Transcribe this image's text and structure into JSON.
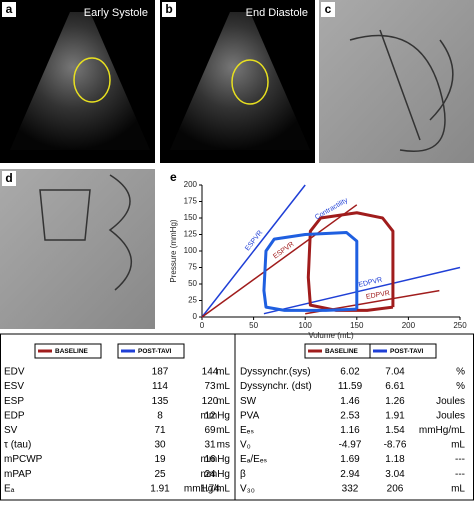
{
  "panels": [
    {
      "label": "a",
      "caption": "Early Systole"
    },
    {
      "label": "b",
      "caption": "End Diastole"
    },
    {
      "label": "c"
    },
    {
      "label": "d"
    }
  ],
  "chart_data": {
    "type": "line",
    "label": "e",
    "xlabel": "Volume (mL)",
    "ylabel": "Pressure (mmHg)",
    "xlim": [
      0,
      250
    ],
    "xticks": [
      0,
      50,
      100,
      150,
      200,
      250
    ],
    "ylim": [
      0,
      200
    ],
    "yticks": [
      0,
      25,
      50,
      75,
      100,
      125,
      150,
      175,
      200
    ],
    "series": [
      {
        "name": "ESPVR",
        "color": "#1f3fd6",
        "x": [
          0,
          100
        ],
        "values": [
          0,
          200
        ]
      },
      {
        "name": "ESPVR",
        "color": "#a01c1c",
        "x": [
          0,
          150
        ],
        "values": [
          0,
          170
        ]
      },
      {
        "name": "EDPVR",
        "color": "#1f3fd6",
        "x": [
          60,
          250
        ],
        "values": [
          5,
          75
        ]
      },
      {
        "name": "EDPVR",
        "color": "#a01c1c",
        "x": [
          100,
          230
        ],
        "values": [
          5,
          40
        ]
      },
      {
        "color": "#a01c1c",
        "x": [
          185,
          185,
          175,
          150,
          115,
          105,
          103,
          105,
          130,
          160,
          185
        ],
        "values": [
          15,
          130,
          150,
          158,
          150,
          130,
          60,
          18,
          10,
          10,
          15
        ]
      },
      {
        "color": "#1f5fe0",
        "x": [
          150,
          150,
          140,
          100,
          70,
          62,
          60,
          62,
          80,
          120,
          150
        ],
        "values": [
          12,
          115,
          128,
          125,
          118,
          100,
          40,
          15,
          10,
          10,
          12
        ]
      }
    ],
    "annotation": "Contractility"
  },
  "table": {
    "legend": [
      "BASELINE",
      "POST-TAVI"
    ],
    "legend_colors": [
      "#a01c1c",
      "#1f3fd6"
    ],
    "left_rows": [
      [
        "EDV",
        "187",
        "144",
        "mL"
      ],
      [
        "ESV",
        "114",
        "73",
        "mL"
      ],
      [
        "ESP",
        "135",
        "120",
        "mL"
      ],
      [
        "EDP",
        "8",
        "12",
        "mmHg"
      ],
      [
        "SV",
        "71",
        "69",
        "mL"
      ],
      [
        "τ (tau)",
        "30",
        "31",
        "ms"
      ],
      [
        "mPCWP",
        "19",
        "16",
        "mmHg"
      ],
      [
        "mPAP",
        "25",
        "24",
        "mmHg"
      ],
      [
        "Eₐ",
        "1.91",
        "1.74",
        "mmHg/mL"
      ]
    ],
    "right_rows": [
      [
        "Dyssynchr.(sys)",
        "6.02",
        "7.04",
        "%"
      ],
      [
        "Dyssynchr. (dst)",
        "11.59",
        "6.61",
        "%"
      ],
      [
        "SW",
        "1.46",
        "1.26",
        "Joules"
      ],
      [
        "PVA",
        "2.53",
        "1.91",
        "Joules"
      ],
      [
        "Eₑₛ",
        "1.16",
        "1.54",
        "mmHg/mL"
      ],
      [
        "V₀",
        "-4.97",
        "-8.76",
        "mL"
      ],
      [
        "Eₐ/Eₑₛ",
        "1.69",
        "1.18",
        "---"
      ],
      [
        "β",
        "2.94",
        "3.04",
        "---"
      ],
      [
        "V₃₀",
        "332",
        "206",
        "mL"
      ]
    ]
  }
}
